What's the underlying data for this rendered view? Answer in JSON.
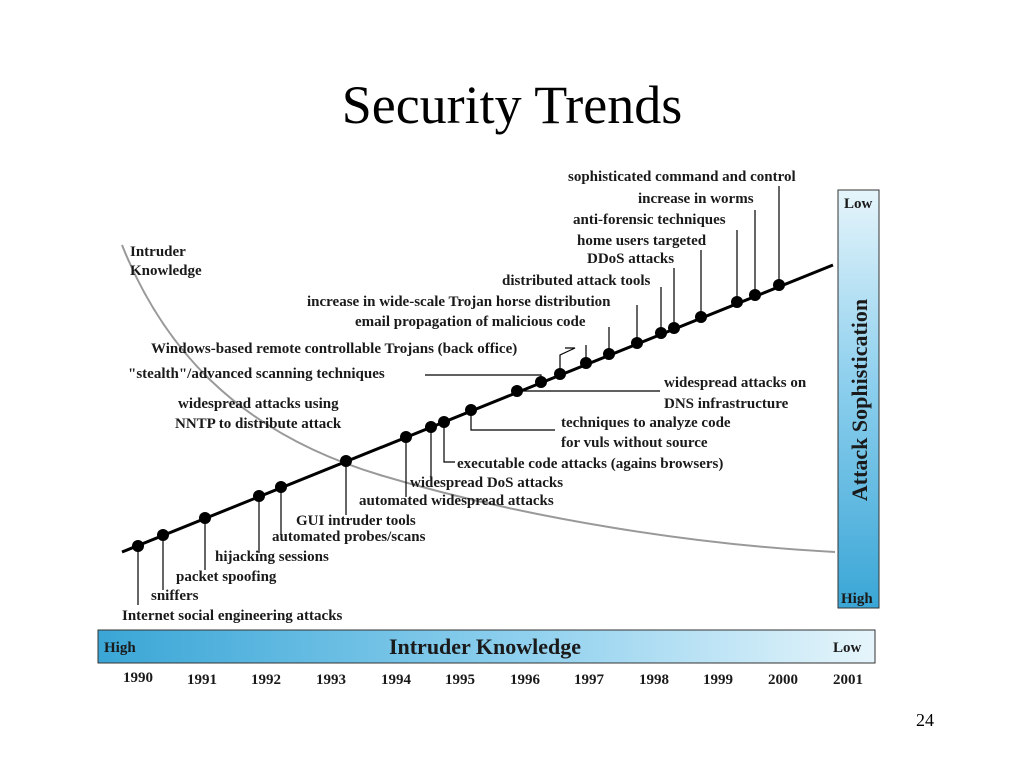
{
  "title": "Security Trends",
  "page_number": "24",
  "curve_label": [
    "Intruder",
    "Knowledge"
  ],
  "knowledge_bar": {
    "label": "Intruder Knowledge",
    "left": "High",
    "right": "Low"
  },
  "sophistication_bar": {
    "label": "Attack Sophistication",
    "top": "Low",
    "bottom": "High"
  },
  "years": [
    "1990",
    "1991",
    "1992",
    "1993",
    "1994",
    "1995",
    "1996",
    "1997",
    "1998",
    "1999",
    "2000",
    "2001"
  ],
  "events_left": [
    "sophisticated command and control",
    "increase in worms",
    "anti-forensic techniques",
    "home users targeted",
    "DDoS attacks",
    "distributed attack tools",
    "increase in wide-scale Trojan horse distribution",
    "email propagation of malicious code",
    "Windows-based remote controllable Trojans (back office)",
    "\"stealth\"/advanced scanning techniques",
    "widespread attacks using",
    "NNTP to distribute attack"
  ],
  "events_right": [
    "widespread attacks on",
    "DNS infrastructure",
    "techniques to analyze code",
    "for vuls without source",
    "executable code attacks (agains browsers)",
    "widespread DoS attacks",
    "automated widespread attacks",
    "GUI intruder tools",
    "automated probes/scans",
    "hijacking sessions",
    "packet spoofing",
    "sniffers",
    "Internet social engineering attacks"
  ],
  "colors": {
    "bar_fill_dark": "#3aa6d6",
    "bar_fill_light": "#d9f0fa",
    "line": "#000000",
    "curve": "#999999"
  }
}
